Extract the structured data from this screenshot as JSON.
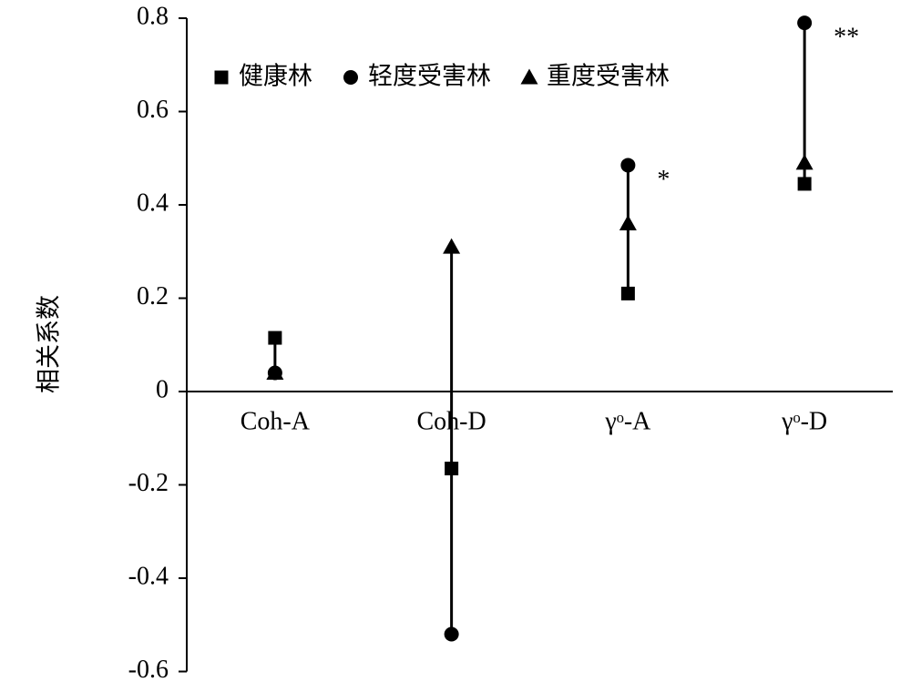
{
  "chart_data": {
    "type": "dot-range",
    "y_label": "相关系数",
    "categories": [
      "Coh-A",
      "Coh-D",
      "γᵒ-A",
      "γᵒ-D"
    ],
    "series": [
      {
        "name": "健康林",
        "marker": "square",
        "color": "#000000",
        "values": [
          0.115,
          -0.165,
          0.21,
          0.445
        ]
      },
      {
        "name": "轻度受害林",
        "marker": "circle",
        "color": "#000000",
        "values": [
          0.04,
          -0.52,
          0.485,
          0.79
        ]
      },
      {
        "name": "重度受害林",
        "marker": "triangle",
        "color": "#000000",
        "values": [
          0.04,
          0.31,
          0.36,
          0.49
        ]
      }
    ],
    "annotations": [
      {
        "text": "*",
        "category": "γᵒ-A",
        "color": "#1f3a7a"
      },
      {
        "text": "**",
        "category": "γᵒ-D",
        "color": "#1f3a7a"
      }
    ],
    "ylim": [
      -0.6,
      0.8
    ],
    "yticks": [
      -0.6,
      -0.4,
      -0.2,
      0,
      0.2,
      0.4,
      0.6,
      0.8
    ],
    "legend": "top"
  }
}
